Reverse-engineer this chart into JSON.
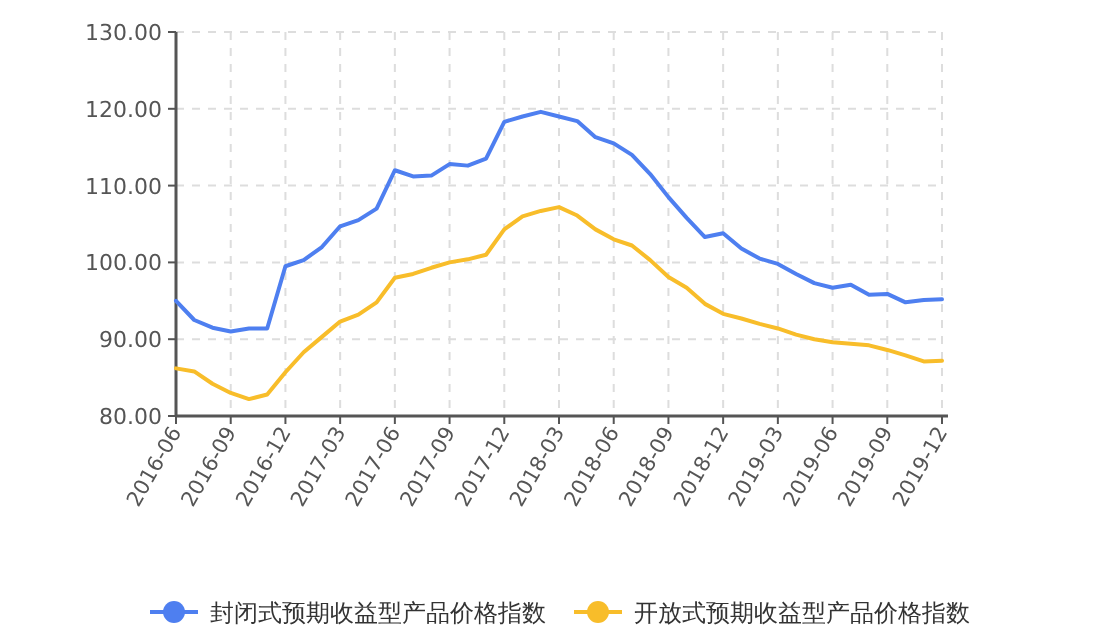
{
  "chart_data": {
    "type": "line",
    "categories": [
      "2016-06",
      null,
      null,
      "2016-09",
      null,
      null,
      "2016-12",
      null,
      null,
      "2017-03",
      null,
      null,
      "2017-06",
      null,
      null,
      "2017-09",
      null,
      null,
      "2017-12",
      null,
      null,
      "2018-03",
      null,
      null,
      "2018-06",
      null,
      null,
      "2018-09",
      null,
      null,
      "2018-12",
      null,
      null,
      "2019-03",
      null,
      null,
      "2019-06",
      null,
      null,
      "2019-09",
      null,
      null,
      "2019-12"
    ],
    "series": [
      {
        "name": "封闭式预期收益型产品价格指数",
        "color": "#4e7ff0",
        "values": [
          95,
          92.5,
          91.5,
          91,
          91.4,
          91.4,
          99.5,
          100.3,
          102,
          104.7,
          105.5,
          107,
          112,
          111.2,
          111.3,
          112.8,
          112.6,
          113.5,
          118.3,
          119,
          119.6,
          119,
          118.4,
          116.3,
          115.5,
          114,
          111.5,
          108.5,
          105.8,
          103.3,
          103.8,
          101.8,
          100.5,
          99.8,
          98.5,
          97.3,
          96.7,
          97.1,
          95.8,
          95.9,
          94.8,
          95.1,
          95.2
        ]
      },
      {
        "name": "开放式预期收益型产品价格指数",
        "color": "#f8bd2a",
        "values": [
          86.2,
          85.8,
          84.2,
          83,
          82.2,
          82.8,
          85.7,
          88.3,
          90.3,
          92.3,
          93.2,
          94.8,
          98,
          98.5,
          99.3,
          100,
          100.4,
          101,
          104.3,
          106,
          106.7,
          107.2,
          106.1,
          104.3,
          103,
          102.2,
          100.3,
          98.1,
          96.7,
          94.6,
          93.3,
          92.7,
          92,
          91.4,
          90.6,
          90,
          89.6,
          89.4,
          89.2,
          88.6,
          87.9,
          87.1,
          87.2
        ]
      }
    ],
    "ylim": [
      80,
      130
    ],
    "yticks": [
      {
        "value": 80,
        "label": "80.00"
      },
      {
        "value": 90,
        "label": "90.00"
      },
      {
        "value": 100,
        "label": "100.00"
      },
      {
        "value": 110,
        "label": "110.00"
      },
      {
        "value": 120,
        "label": "120.00"
      },
      {
        "value": 130,
        "label": "130.00"
      }
    ],
    "grid": true,
    "legend": "bottom"
  }
}
